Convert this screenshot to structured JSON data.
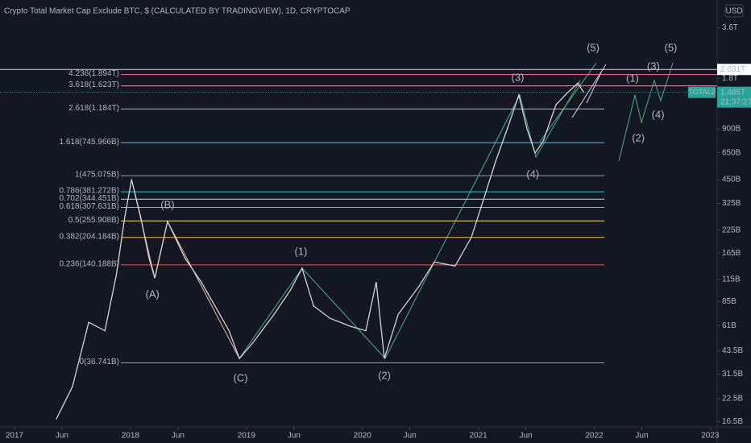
{
  "chart_data": {
    "type": "line",
    "title": "Crypto Total Market Cap Exclude BTC, $ (CALCULATED BY TRADINGVIEW), 1D, CRYPTOCAP",
    "currency": "USD",
    "log_scale": true,
    "xlim": [
      2016.875,
      2023.06
    ],
    "ylim": [
      15.3,
      5250
    ],
    "xticks": [
      {
        "value": 2017,
        "label": "2017"
      },
      {
        "value": 2017.41,
        "label": "Jun"
      },
      {
        "value": 2018,
        "label": "2018"
      },
      {
        "value": 2018.41,
        "label": "Jun"
      },
      {
        "value": 2019,
        "label": "2019"
      },
      {
        "value": 2019.41,
        "label": "Jun"
      },
      {
        "value": 2020,
        "label": "2020"
      },
      {
        "value": 2020.41,
        "label": "Jun"
      },
      {
        "value": 2021,
        "label": "2021"
      },
      {
        "value": 2021.41,
        "label": "Jun"
      },
      {
        "value": 2022,
        "label": "2022"
      },
      {
        "value": 2022.41,
        "label": "Jun"
      },
      {
        "value": 2023,
        "label": "2023"
      }
    ],
    "yticks": [
      {
        "value": 3600,
        "label": "3.6T"
      },
      {
        "value": 1800,
        "label": "1.8T"
      },
      {
        "value": 900,
        "label": "900B"
      },
      {
        "value": 650,
        "label": "650B"
      },
      {
        "value": 450,
        "label": "450B"
      },
      {
        "value": 325,
        "label": "325B"
      },
      {
        "value": 225,
        "label": "225B"
      },
      {
        "value": 165,
        "label": "165B"
      },
      {
        "value": 115,
        "label": "115B"
      },
      {
        "value": 85,
        "label": "85B"
      },
      {
        "value": 61,
        "label": "61B"
      },
      {
        "value": 43.5,
        "label": "43.5B"
      },
      {
        "value": 31.5,
        "label": "31.5B"
      },
      {
        "value": 22.5,
        "label": "22.5B"
      },
      {
        "value": 16.5,
        "label": "16.5B"
      }
    ],
    "series": [
      {
        "name": "TOTAL2",
        "color": "#d1d4dc",
        "x": [
          2017.36,
          2017.5,
          2017.64,
          2017.78,
          2017.88,
          2017.95,
          2018.01,
          2018.09,
          2018.16,
          2018.21,
          2018.32,
          2018.47,
          2018.61,
          2018.75,
          2018.85,
          2018.94,
          2019.06,
          2019.24,
          2019.38,
          2019.48,
          2019.58,
          2019.72,
          2019.9,
          2020.03,
          2020.12,
          2020.19,
          2020.31,
          2020.49,
          2020.62,
          2020.8,
          2020.94,
          2021.04,
          2021.15,
          2021.25,
          2021.35,
          2021.42,
          2021.49,
          2021.56,
          2021.67,
          2021.77,
          2021.86,
          2021.91
        ],
        "values": [
          17,
          26.5,
          64,
          57,
          124,
          268,
          450,
          268,
          154,
          117,
          254,
          154,
          111,
          75.5,
          57,
          39,
          48.7,
          71.5,
          99.4,
          134,
          80,
          67.6,
          60.5,
          57,
          111,
          39,
          71.5,
          105,
          146,
          138,
          204,
          334,
          580,
          901,
          1431,
          901,
          647,
          764,
          1254,
          1479,
          1688,
          1479
        ]
      }
    ],
    "fib_levels": [
      {
        "label": "4.236(1.894T)",
        "value": 1894,
        "color": "#f06292"
      },
      {
        "label": "3.618(1.623T)",
        "value": 1623,
        "color": "#f48fb1"
      },
      {
        "label": "2.618(1.184T)",
        "value": 1184,
        "color": "#b2b5be"
      },
      {
        "label": "1.618(745.966B)",
        "value": 745.966,
        "color": "#4fc3f7"
      },
      {
        "label": "1(475.075B)",
        "value": 475.075,
        "color": "#9598a1"
      },
      {
        "label": "0.786(381.272B)",
        "value": 381.272,
        "color": "#26c6da"
      },
      {
        "label": "0.702(344.451B)",
        "value": 344.451,
        "color": "#d1d4dc"
      },
      {
        "label": "0.618(307.631B)",
        "value": 307.631,
        "color": "#81c784"
      },
      {
        "label": "0.5(255.908B)",
        "value": 255.908,
        "color": "#ffd54f"
      },
      {
        "label": "0.382(204.184B)",
        "value": 204.184,
        "color": "#ffb74d"
      },
      {
        "label": "0.236(140.188B)",
        "value": 140.188,
        "color": "#ef5350"
      },
      {
        "label": "0(36.741B)",
        "value": 36.741,
        "color": "#9598a1"
      }
    ],
    "annotations": [
      {
        "text": "(A)",
        "x": 2018.19,
        "y": 93,
        "color": "#f2b8a0"
      },
      {
        "text": "(B)",
        "x": 2018.32,
        "y": 316,
        "color": "#f2b8a0"
      },
      {
        "text": "(C)",
        "x": 2018.95,
        "y": 29.6,
        "color": "#f2b8a0"
      },
      {
        "text": "(1)",
        "x": 2019.47,
        "y": 167,
        "color": "#4caf8a"
      },
      {
        "text": "(2)",
        "x": 2020.19,
        "y": 30.6,
        "color": "#4caf8a"
      },
      {
        "text": "(3)",
        "x": 2021.34,
        "y": 1803,
        "color": "#4caf8a"
      },
      {
        "text": "(4)",
        "x": 2021.47,
        "y": 481,
        "color": "#4caf8a"
      },
      {
        "text": "(5)",
        "x": 2021.99,
        "y": 2712,
        "color": "#4caf8a"
      },
      {
        "text": "(1)",
        "x": 2022.33,
        "y": 1784,
        "color": "#4caf8a"
      },
      {
        "text": "(2)",
        "x": 2022.38,
        "y": 789,
        "color": "#4caf8a"
      },
      {
        "text": "(3)",
        "x": 2022.51,
        "y": 2105,
        "color": "#4caf8a"
      },
      {
        "text": "(4)",
        "x": 2022.55,
        "y": 1086,
        "color": "#4caf8a"
      },
      {
        "text": "(5)",
        "x": 2022.66,
        "y": 2712,
        "color": "#4caf8a"
      }
    ],
    "price_tags": [
      {
        "label": "2.031T",
        "value": 2031
      },
      {
        "label": "1.485T",
        "value": 1485,
        "symbol": "TOTAL2",
        "countdown": "21:37:27"
      }
    ]
  }
}
